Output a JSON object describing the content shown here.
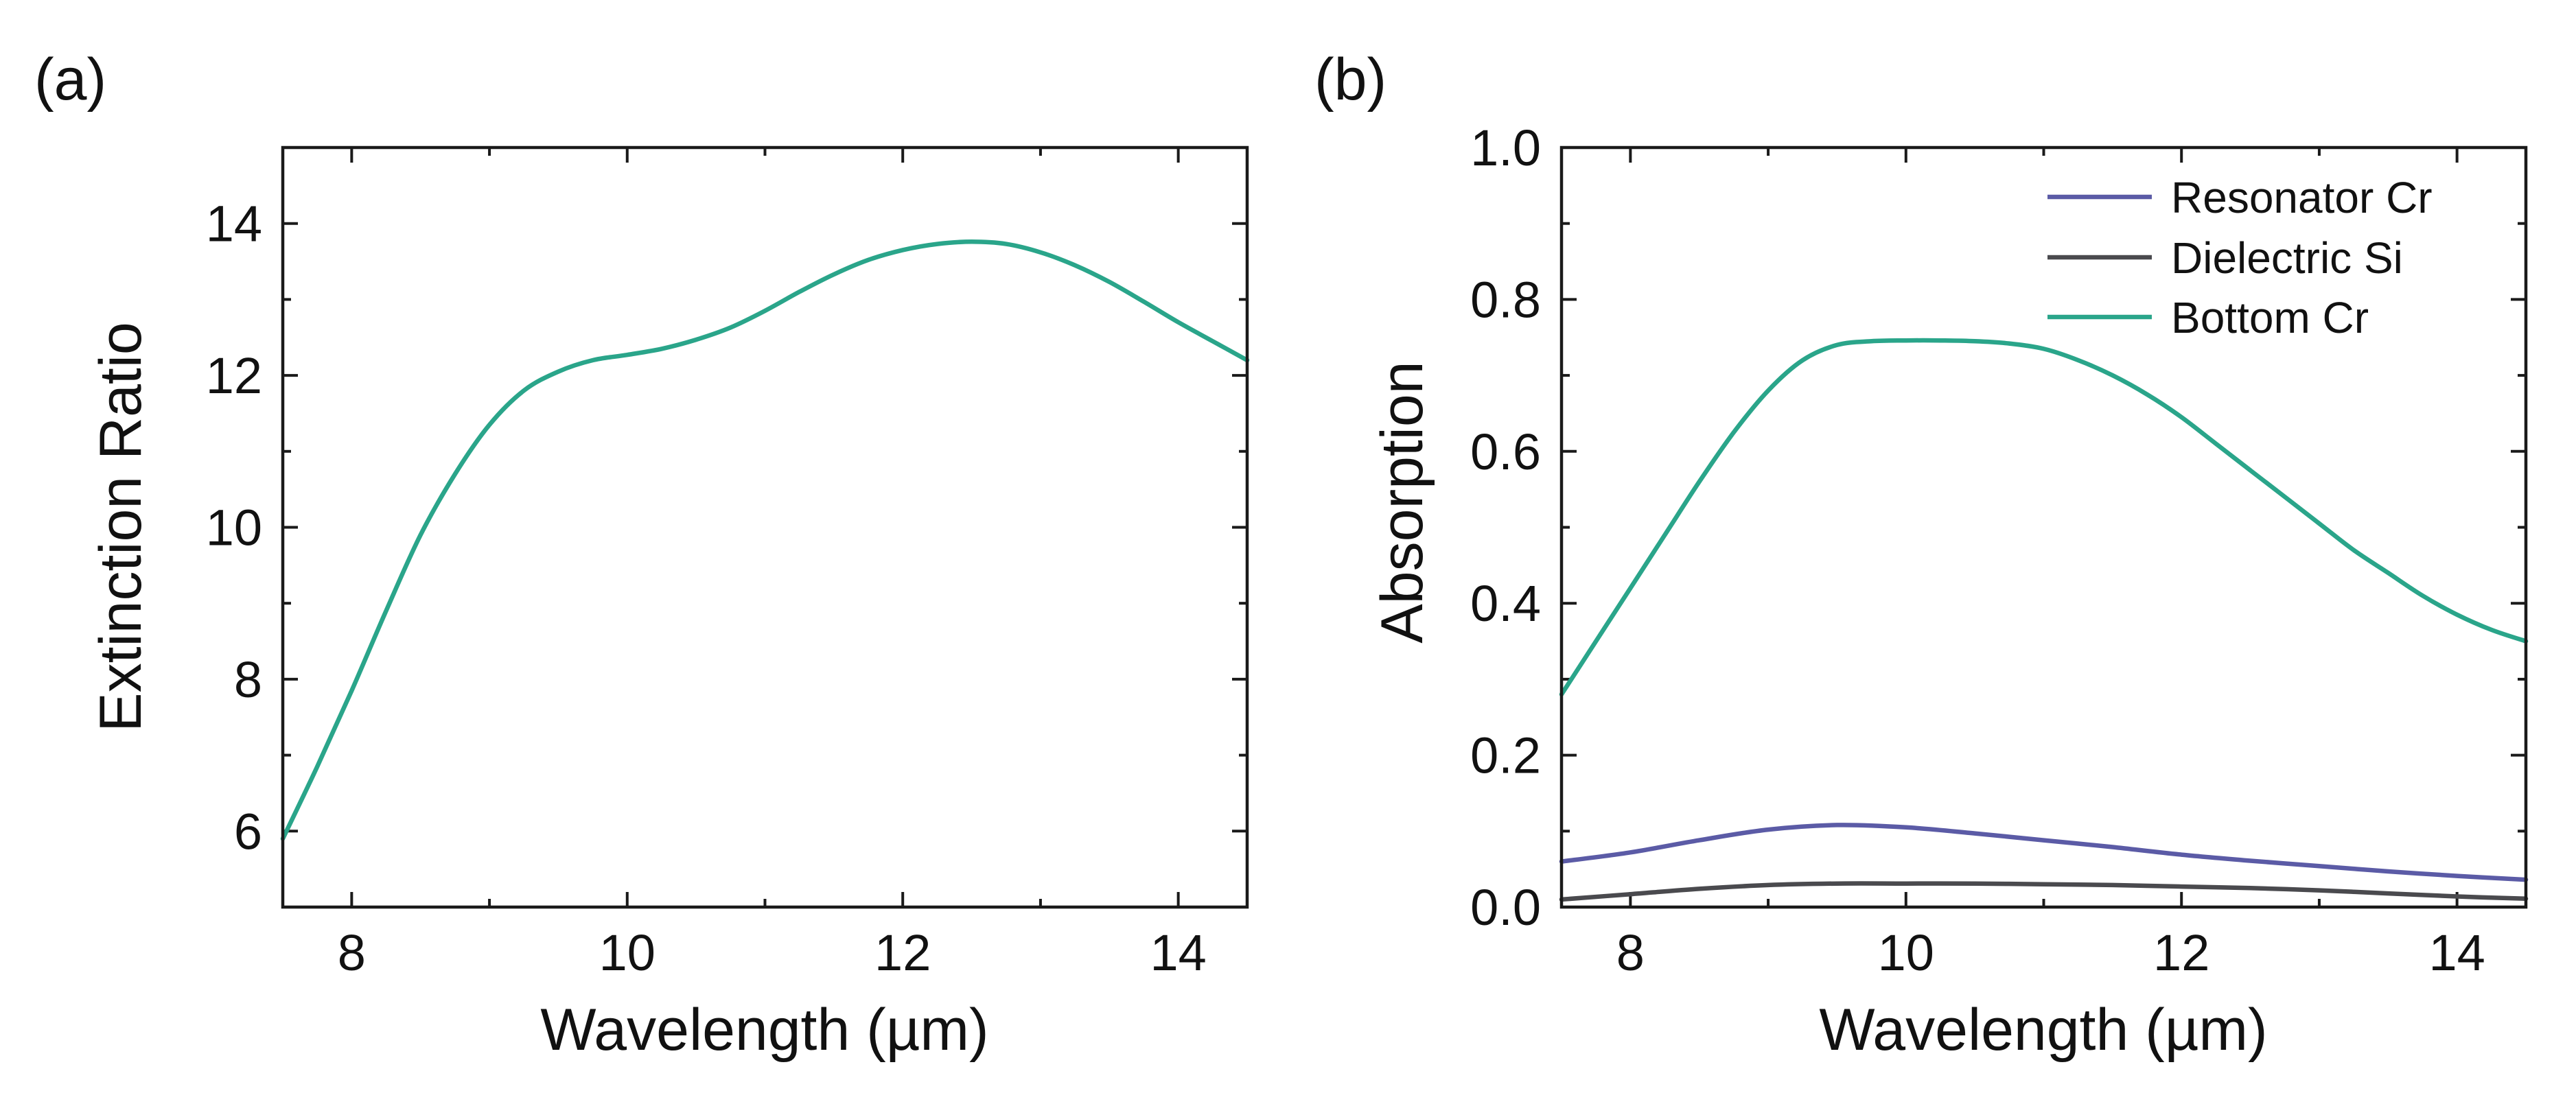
{
  "chart_data": [
    {
      "panel": "(a)",
      "type": "line",
      "title": "",
      "xlabel": "Wavelength (µm)",
      "ylabel": "Extinction Ratio",
      "xlim": [
        7.5,
        14.5
      ],
      "ylim": [
        5,
        15
      ],
      "xticks": [
        8,
        10,
        12,
        14
      ],
      "xticks_minor": [
        9,
        11,
        13
      ],
      "yticks": [
        6,
        8,
        10,
        12,
        14
      ],
      "yticks_minor": [
        5,
        7,
        9,
        11,
        13,
        15
      ],
      "legend": null,
      "series": [
        {
          "name": "Extinction Ratio",
          "color": "#2aa58a",
          "x": [
            7.5,
            7.75,
            8.0,
            8.25,
            8.5,
            8.75,
            9.0,
            9.25,
            9.5,
            9.75,
            10.0,
            10.25,
            10.5,
            10.75,
            11.0,
            11.25,
            11.5,
            11.75,
            12.0,
            12.25,
            12.5,
            12.75,
            13.0,
            13.25,
            13.5,
            13.75,
            14.0,
            14.25,
            14.5
          ],
          "y": [
            5.9,
            6.85,
            7.85,
            8.9,
            9.9,
            10.7,
            11.35,
            11.8,
            12.05,
            12.2,
            12.27,
            12.35,
            12.47,
            12.63,
            12.85,
            13.1,
            13.33,
            13.52,
            13.65,
            13.73,
            13.76,
            13.73,
            13.62,
            13.45,
            13.23,
            12.97,
            12.7,
            12.45,
            12.2
          ]
        }
      ]
    },
    {
      "panel": "(b)",
      "type": "line",
      "title": "",
      "xlabel": "Wavelength (µm)",
      "ylabel": "Absorption",
      "xlim": [
        7.5,
        14.5
      ],
      "ylim": [
        0.0,
        1.0
      ],
      "xticks": [
        8,
        10,
        12,
        14
      ],
      "xticks_minor": [
        9,
        11,
        13
      ],
      "yticks": [
        0.0,
        0.2,
        0.4,
        0.6,
        0.8,
        1.0
      ],
      "yticks_minor": [
        0.1,
        0.3,
        0.5,
        0.7,
        0.9
      ],
      "ytick_labels": [
        "0.0",
        "0.2",
        "0.4",
        "0.6",
        "0.8",
        "1.0"
      ],
      "legend": "top-right",
      "series": [
        {
          "name": "Resonator Cr",
          "color": "#5b5ba6",
          "x": [
            7.5,
            8.0,
            8.5,
            9.0,
            9.5,
            10.0,
            10.5,
            11.0,
            11.5,
            12.0,
            12.5,
            13.0,
            13.5,
            14.0,
            14.5
          ],
          "y": [
            0.06,
            0.072,
            0.088,
            0.102,
            0.108,
            0.105,
            0.097,
            0.088,
            0.079,
            0.069,
            0.061,
            0.054,
            0.047,
            0.041,
            0.036
          ]
        },
        {
          "name": "Dielectric Si",
          "color": "#4a4a4e",
          "x": [
            7.5,
            8.0,
            8.5,
            9.0,
            9.5,
            10.0,
            10.5,
            11.0,
            11.5,
            12.0,
            12.5,
            13.0,
            13.5,
            14.0,
            14.5
          ],
          "y": [
            0.01,
            0.017,
            0.024,
            0.029,
            0.031,
            0.031,
            0.031,
            0.03,
            0.029,
            0.027,
            0.025,
            0.022,
            0.018,
            0.014,
            0.011
          ]
        },
        {
          "name": "Bottom Cr",
          "color": "#2aa58a",
          "x": [
            7.5,
            7.75,
            8.0,
            8.25,
            8.5,
            8.75,
            9.0,
            9.25,
            9.5,
            9.75,
            10.0,
            10.25,
            10.5,
            10.75,
            11.0,
            11.25,
            11.5,
            11.75,
            12.0,
            12.25,
            12.5,
            12.75,
            13.0,
            13.25,
            13.5,
            13.75,
            14.0,
            14.25,
            14.5
          ],
          "y": [
            0.28,
            0.35,
            0.42,
            0.49,
            0.56,
            0.625,
            0.68,
            0.72,
            0.74,
            0.745,
            0.746,
            0.746,
            0.745,
            0.742,
            0.735,
            0.72,
            0.7,
            0.675,
            0.645,
            0.61,
            0.575,
            0.54,
            0.505,
            0.47,
            0.44,
            0.41,
            0.385,
            0.365,
            0.35
          ]
        }
      ]
    }
  ]
}
